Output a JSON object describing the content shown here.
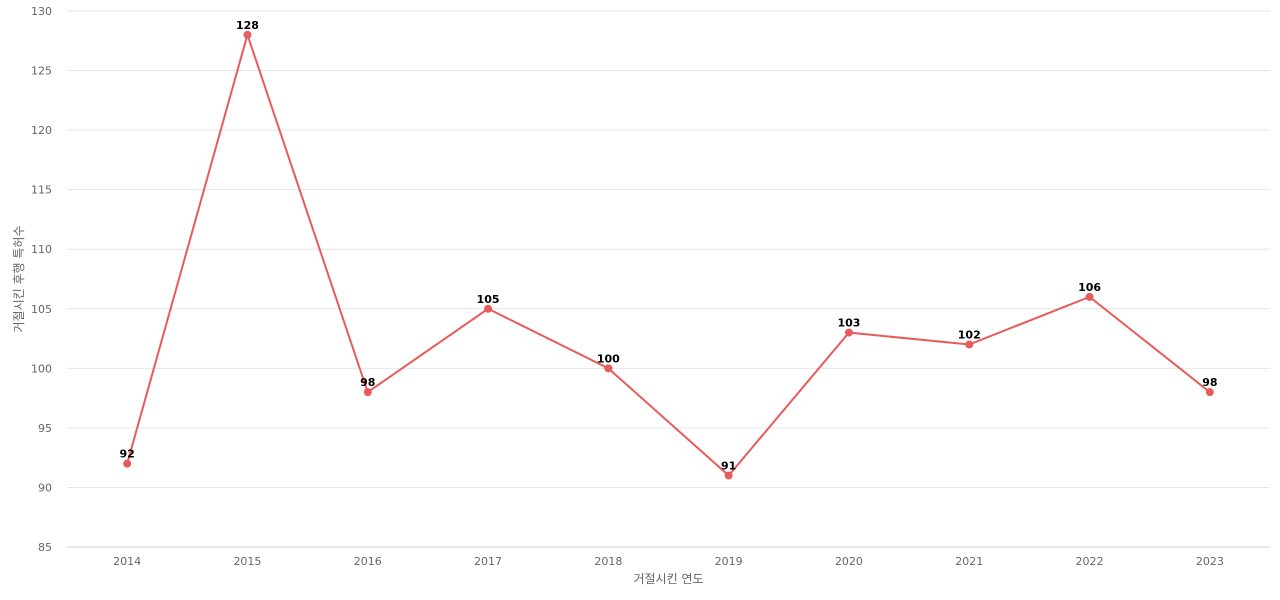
{
  "chart_data": {
    "type": "line",
    "categories": [
      "2014",
      "2015",
      "2016",
      "2017",
      "2018",
      "2019",
      "2020",
      "2021",
      "2022",
      "2023"
    ],
    "series": [
      {
        "values": [
          92,
          128,
          98,
          105,
          100,
          91,
          103,
          102,
          106,
          98
        ]
      }
    ],
    "xlabel": "거절시킨 연도",
    "ylabel": "거절시킨 후행 특허수",
    "ylim": [
      85,
      130
    ],
    "yticks": [
      85,
      90,
      95,
      100,
      105,
      110,
      115,
      120,
      125,
      130
    ],
    "grid": true,
    "line_color": "#e85b5b"
  }
}
